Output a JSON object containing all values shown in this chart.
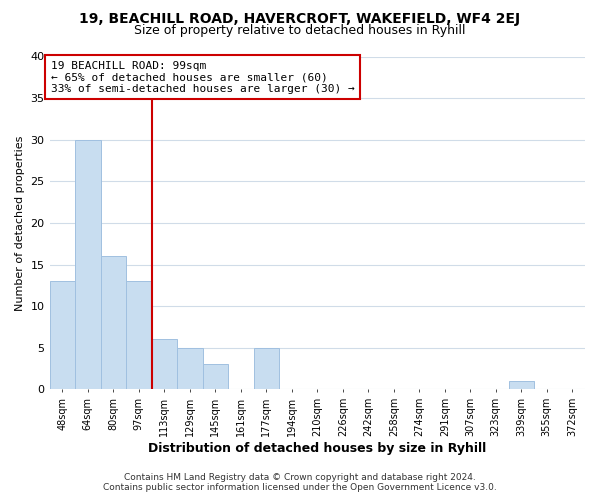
{
  "title": "19, BEACHILL ROAD, HAVERCROFT, WAKEFIELD, WF4 2EJ",
  "subtitle": "Size of property relative to detached houses in Ryhill",
  "xlabel": "Distribution of detached houses by size in Ryhill",
  "ylabel": "Number of detached properties",
  "bar_labels": [
    "48sqm",
    "64sqm",
    "80sqm",
    "97sqm",
    "113sqm",
    "129sqm",
    "145sqm",
    "161sqm",
    "177sqm",
    "194sqm",
    "210sqm",
    "226sqm",
    "242sqm",
    "258sqm",
    "274sqm",
    "291sqm",
    "307sqm",
    "323sqm",
    "339sqm",
    "355sqm",
    "372sqm"
  ],
  "bar_values": [
    13,
    30,
    16,
    13,
    6,
    5,
    3,
    0,
    5,
    0,
    0,
    0,
    0,
    0,
    0,
    0,
    0,
    0,
    1,
    0,
    0
  ],
  "bar_color": "#c8ddf0",
  "bar_edge_color": "#a0c0e0",
  "vline_color": "#cc0000",
  "annotation_text": "19 BEACHILL ROAD: 99sqm\n← 65% of detached houses are smaller (60)\n33% of semi-detached houses are larger (30) →",
  "annotation_box_color": "#ffffff",
  "annotation_box_edge": "#cc0000",
  "ylim": [
    0,
    40
  ],
  "yticks": [
    0,
    5,
    10,
    15,
    20,
    25,
    30,
    35,
    40
  ],
  "footer": "Contains HM Land Registry data © Crown copyright and database right 2024.\nContains public sector information licensed under the Open Government Licence v3.0.",
  "bg_color": "#ffffff",
  "grid_color": "#d0dce8"
}
